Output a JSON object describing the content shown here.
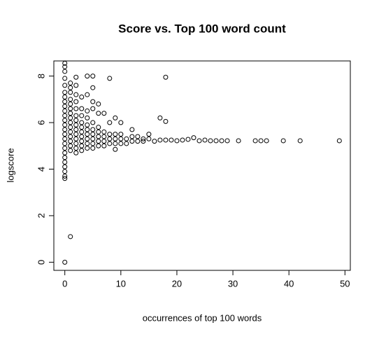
{
  "chart_data": {
    "type": "scatter",
    "title": "Score vs. Top 100 word count",
    "x_label": "occurrences of top 100 words",
    "y_label": "logscore",
    "xlim": [
      -1.96,
      50.96
    ],
    "ylim": [
      -0.35,
      8.65
    ],
    "xticks": [
      0,
      10,
      20,
      30,
      40,
      50
    ],
    "yticks": [
      0,
      2,
      4,
      6,
      8
    ],
    "color": "#000000",
    "x": [
      0,
      0,
      0,
      0,
      0,
      0,
      0,
      0,
      0,
      0,
      0,
      0,
      0,
      0,
      0,
      0,
      0,
      0,
      0,
      0,
      0,
      0,
      0,
      0,
      0,
      0,
      1,
      1,
      1,
      1,
      1,
      1,
      1,
      1,
      1,
      1,
      1,
      1,
      1,
      1,
      1,
      1,
      2,
      2,
      2,
      2,
      2,
      2,
      2,
      2,
      2,
      2,
      2,
      2,
      2,
      2,
      3,
      3,
      3,
      3,
      3,
      3,
      3,
      3,
      3,
      3,
      4,
      4,
      4,
      4,
      4,
      4,
      4,
      4,
      4,
      4,
      5,
      5,
      5,
      5,
      5,
      5,
      5,
      5,
      5,
      5,
      6,
      6,
      6,
      6,
      6,
      6,
      6,
      7,
      7,
      7,
      7,
      7,
      8,
      8,
      8,
      8,
      8,
      9,
      9,
      9,
      9,
      9,
      10,
      10,
      10,
      10,
      11,
      11,
      12,
      12,
      12,
      13,
      13,
      14,
      14,
      15,
      15,
      16,
      17,
      17,
      18,
      18,
      18,
      19,
      20,
      21,
      22,
      23,
      24,
      25,
      26,
      27,
      28,
      29,
      31,
      34,
      35,
      36,
      39,
      42,
      49
    ],
    "values": [
      0,
      3.6,
      3.7,
      3.9,
      4.1,
      4.3,
      4.5,
      4.7,
      4.9,
      5.1,
      5.3,
      5.5,
      5.7,
      5.9,
      6.1,
      6.3,
      6.5,
      6.7,
      6.9,
      7.1,
      7.3,
      7.6,
      7.9,
      8.2,
      8.4,
      8.55,
      1.1,
      4.8,
      5.0,
      5.2,
      5.4,
      5.6,
      5.8,
      6.0,
      6.2,
      6.4,
      6.6,
      6.8,
      7.0,
      7.3,
      7.5,
      7.7,
      4.7,
      4.9,
      5.1,
      5.3,
      5.5,
      5.7,
      5.9,
      6.1,
      6.3,
      6.6,
      6.9,
      7.2,
      7.6,
      7.95,
      4.8,
      5.0,
      5.2,
      5.4,
      5.6,
      5.8,
      6.0,
      6.3,
      6.6,
      7.1,
      4.9,
      5.1,
      5.3,
      5.5,
      5.7,
      5.9,
      6.2,
      6.5,
      7.2,
      8.0,
      4.9,
      5.1,
      5.3,
      5.5,
      5.7,
      6.0,
      6.6,
      6.9,
      7.5,
      8.0,
      5.0,
      5.2,
      5.4,
      5.6,
      5.8,
      6.4,
      6.8,
      5.0,
      5.2,
      5.4,
      5.6,
      6.4,
      5.1,
      5.3,
      5.5,
      6.0,
      7.9,
      4.85,
      5.1,
      5.3,
      5.5,
      6.2,
      5.1,
      5.3,
      5.5,
      6.0,
      5.1,
      5.3,
      5.2,
      5.4,
      5.7,
      5.2,
      5.4,
      5.2,
      5.3,
      5.3,
      5.5,
      5.2,
      5.25,
      6.2,
      5.25,
      6.05,
      7.95,
      5.25,
      5.22,
      5.25,
      5.28,
      5.35,
      5.22,
      5.25,
      5.22,
      5.22,
      5.22,
      5.22,
      5.22,
      5.22,
      5.22,
      5.22,
      5.22,
      5.22,
      5.22
    ]
  }
}
